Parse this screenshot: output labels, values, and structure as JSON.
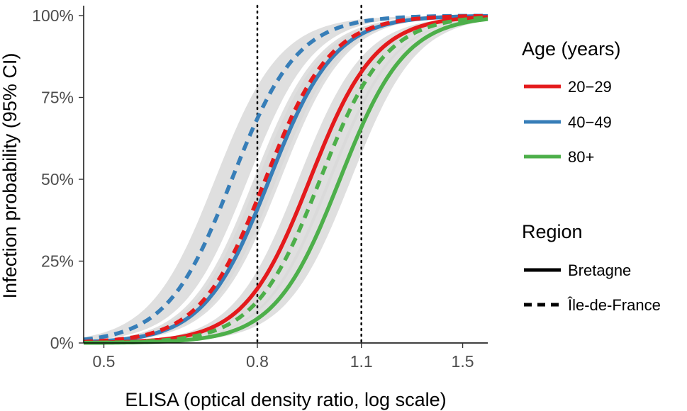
{
  "chart_data": {
    "type": "line",
    "xlabel": "ELISA (optical density ratio, log scale)",
    "ylabel": "Infection probability (95% CI)",
    "x_scale": "log",
    "xlim": [
      0.47,
      1.62
    ],
    "ylim": [
      0,
      1
    ],
    "x_ticks": [
      {
        "value": 0.5,
        "label": "0.5"
      },
      {
        "value": 0.8,
        "label": "0.8"
      },
      {
        "value": 1.1,
        "label": "1.1"
      },
      {
        "value": 1.5,
        "label": "1.5"
      }
    ],
    "y_ticks": [
      {
        "value": 0,
        "label": "0%"
      },
      {
        "value": 0.25,
        "label": "25%"
      },
      {
        "value": 0.5,
        "label": "50%"
      },
      {
        "value": 0.75,
        "label": "75%"
      },
      {
        "value": 1.0,
        "label": "100%"
      }
    ],
    "reference_lines_x": [
      0.8,
      1.1
    ],
    "grid": false,
    "legend_position": "right",
    "legend_age_title": "Age (years)",
    "legend_region_title": "Region",
    "age_groups": [
      {
        "name": "20−29",
        "color": "#e41a1c"
      },
      {
        "name": "40−49",
        "color": "#377eb8"
      },
      {
        "name": "80+",
        "color": "#4daf4a"
      }
    ],
    "regions": [
      {
        "name": "Bretagne",
        "dash": "solid"
      },
      {
        "name": "Île-de-France",
        "dash": "dashed"
      }
    ],
    "band_color": "#d9d9d9",
    "series": [
      {
        "name": "40−49, Île-de-France",
        "age": "40−49",
        "region": "Île-de-France",
        "x50": 0.74,
        "slope": 10.0,
        "ci_halfwidth": 0.05
      },
      {
        "name": "40−49, Bretagne",
        "age": "40−49",
        "region": "Bretagne",
        "x50": 0.83,
        "slope": 10.0,
        "ci_halfwidth": 0.035
      },
      {
        "name": "20−29, Île-de-France",
        "age": "20−29",
        "region": "Île-de-France",
        "x50": 0.82,
        "slope": 10.0,
        "ci_halfwidth": 0.035
      },
      {
        "name": "20−29, Bretagne",
        "age": "20−29",
        "region": "Bretagne",
        "x50": 0.94,
        "slope": 10.0,
        "ci_halfwidth": 0.035
      },
      {
        "name": "80+, Île-de-France",
        "age": "80+",
        "region": "Île-de-France",
        "x50": 0.97,
        "slope": 10.0,
        "ci_halfwidth": 0.035
      },
      {
        "name": "80+, Bretagne",
        "age": "80+",
        "region": "Bretagne",
        "x50": 1.03,
        "slope": 10.0,
        "ci_halfwidth": 0.035
      }
    ]
  }
}
